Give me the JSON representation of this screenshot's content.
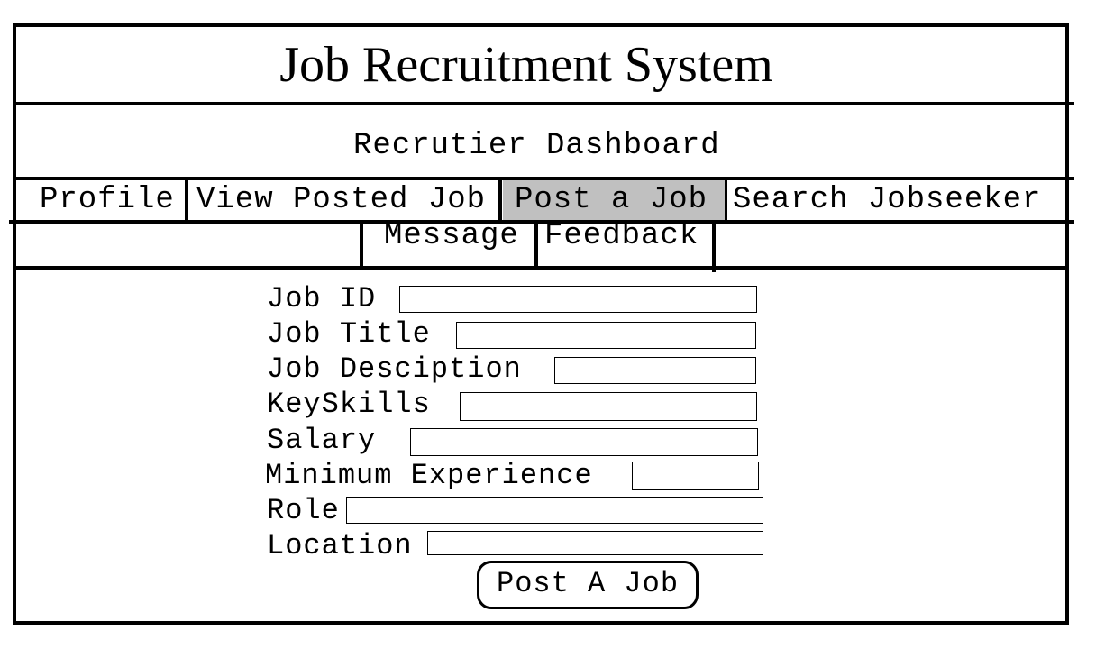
{
  "header": {
    "app_title": "Job Recruitment System",
    "dashboard_title": "Recrutier Dashboard"
  },
  "nav": {
    "active_item": "Post a Job",
    "active_color": "#c0c0c0",
    "row1": [
      "Profile",
      "View Posted Job",
      "Post a Job",
      "Search Jobseeker"
    ],
    "row2": [
      "Message",
      "Feedback"
    ]
  },
  "form": {
    "fields": [
      {
        "label": "Job ID",
        "value": ""
      },
      {
        "label": "Job Title",
        "value": ""
      },
      {
        "label": "Job Desciption",
        "value": ""
      },
      {
        "label": "KeySkills",
        "value": ""
      },
      {
        "label": "Salary",
        "value": ""
      },
      {
        "label": "Minimum Experience",
        "value": ""
      },
      {
        "label": "Role",
        "value": ""
      },
      {
        "label": "Location",
        "value": ""
      }
    ],
    "submit_label": "Post A Job"
  }
}
